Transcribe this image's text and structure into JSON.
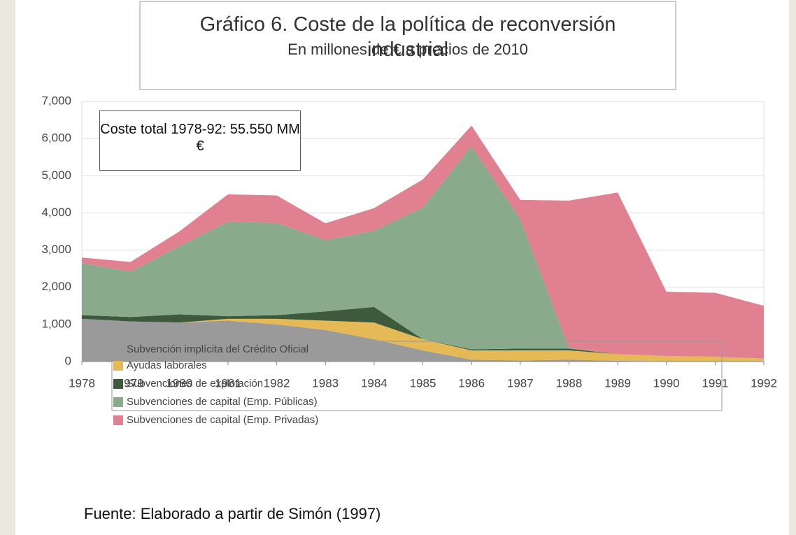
{
  "chart_data": {
    "type": "stacked_area",
    "title": "Gráfico 6. Coste de la política de reconversión industrial",
    "subtitle": "En millones de € a precios de 2010",
    "annotation": "Coste total 1978-92: 55.550 MM €",
    "source": "Fuente: Elaborado a partir de Simón (1997)",
    "x": [
      1978,
      1979,
      1980,
      1981,
      1982,
      1983,
      1984,
      1985,
      1986,
      1987,
      1988,
      1989,
      1990,
      1991,
      1992
    ],
    "xlim": [
      1978,
      1992
    ],
    "xticks": [
      1978,
      1979,
      1980,
      1981,
      1982,
      1983,
      1984,
      1985,
      1986,
      1987,
      1988,
      1989,
      1990,
      1991,
      1992
    ],
    "ylim": [
      0,
      7000
    ],
    "yticks": [
      0,
      {
        "value": 1000,
        "label": "1,000"
      },
      {
        "value": 2000,
        "label": "2,000"
      },
      {
        "value": 3000,
        "label": "3,000"
      },
      {
        "value": 4000,
        "label": "4,000"
      },
      {
        "value": 5000,
        "label": "5,000"
      },
      {
        "value": 6000,
        "label": "6,000"
      },
      {
        "value": 7000,
        "label": "7,000"
      }
    ],
    "grid": true,
    "series": [
      {
        "name": "Subvención implícita del Crédito Oficial",
        "color": "#9a9a9a",
        "values": [
          1150,
          1080,
          1050,
          1100,
          1000,
          850,
          600,
          300,
          50,
          30,
          50,
          20,
          10,
          10,
          0
        ]
      },
      {
        "name": "Ayudas laborales",
        "color": "#e6b957",
        "values": [
          0,
          0,
          0,
          50,
          150,
          250,
          450,
          300,
          250,
          270,
          250,
          180,
          140,
          120,
          80
        ]
      },
      {
        "name": "Subvenciones de explotación",
        "color": "#3e5a3c",
        "values": [
          100,
          120,
          220,
          70,
          100,
          250,
          420,
          0,
          30,
          50,
          50,
          0,
          0,
          0,
          0
        ]
      },
      {
        "name": "Subvenciones de capital (Emp. Públicas)",
        "color": "#8aab8b",
        "values": [
          1400,
          1220,
          1830,
          2550,
          2480,
          1920,
          2050,
          3550,
          5470,
          3480,
          20,
          0,
          0,
          0,
          0
        ]
      },
      {
        "name": "Subvenciones de capital (Emp. Privadas)",
        "color": "#e08090",
        "values": [
          150,
          260,
          400,
          730,
          740,
          450,
          610,
          750,
          550,
          520,
          3960,
          4350,
          1730,
          1720,
          1420
        ]
      }
    ]
  }
}
